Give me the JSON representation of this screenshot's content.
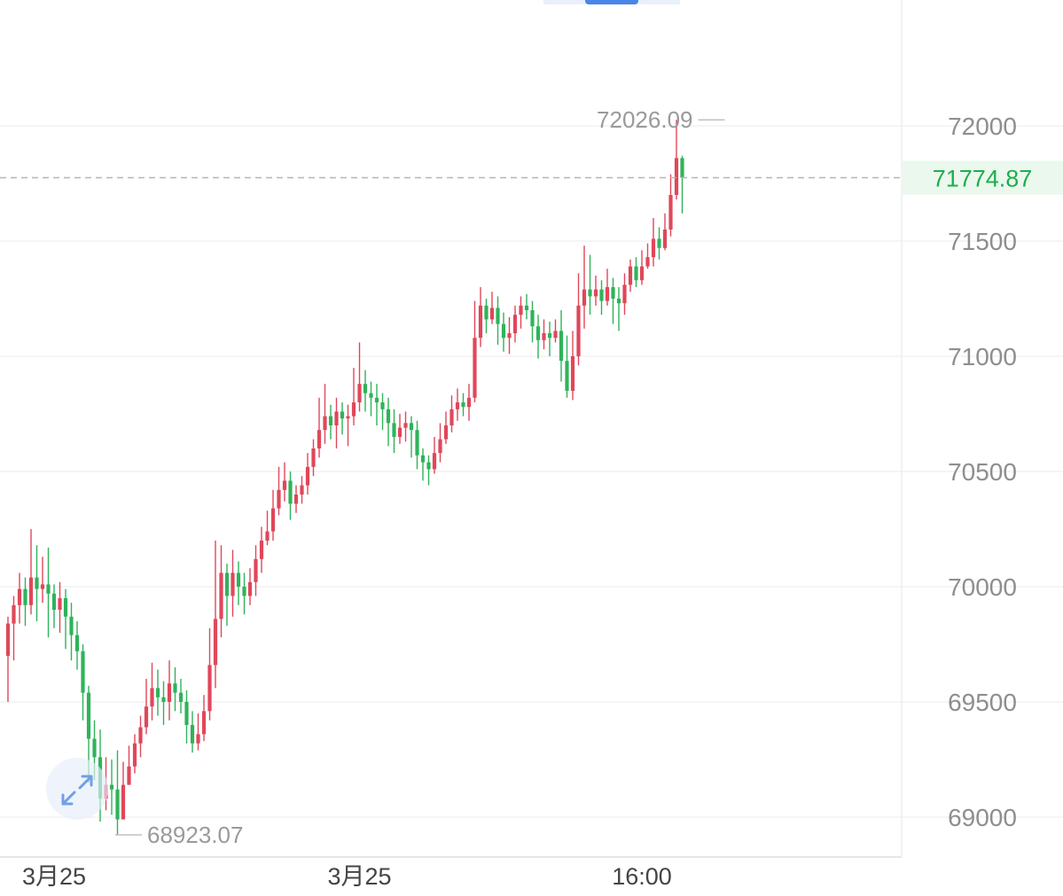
{
  "colors": {
    "up": "#e0475a",
    "down": "#2fb35a",
    "current_price": "#1fae4c",
    "axis_text": "#8e8e8e",
    "grid": "#efefef",
    "accent": "#4a86e6"
  },
  "controls": {
    "expand_icon": "expand-arrows-icon",
    "top_tab_indicator": "active-tab-indicator"
  },
  "chart_data": {
    "type": "candlestick",
    "title": "",
    "ylim": [
      68800,
      72200
    ],
    "y_ticks": [
      72000,
      71500,
      71000,
      70500,
      70000,
      69500,
      69000
    ],
    "x_tick_labels": [
      "3月25",
      "3月25",
      "16:00"
    ],
    "x_tick_index": [
      8,
      61,
      110
    ],
    "current_price": "71774.87",
    "high_annotation": {
      "label": "72026.09",
      "index": 125
    },
    "low_annotation": {
      "label": "68923.07",
      "index": 18
    },
    "grid": true,
    "candles": [
      [
        69700,
        69840,
        69500,
        69870
      ],
      [
        69840,
        69920,
        69680,
        69960
      ],
      [
        69920,
        69990,
        69840,
        70060
      ],
      [
        69990,
        69920,
        69830,
        70040
      ],
      [
        69920,
        70040,
        69880,
        70250
      ],
      [
        70040,
        69990,
        69850,
        70180
      ],
      [
        69990,
        70010,
        69930,
        70130
      ],
      [
        70010,
        69970,
        69780,
        70170
      ],
      [
        69970,
        69900,
        69820,
        70010
      ],
      [
        69900,
        69950,
        69800,
        70020
      ],
      [
        69950,
        69870,
        69730,
        69990
      ],
      [
        69870,
        69790,
        69680,
        69930
      ],
      [
        69790,
        69720,
        69640,
        69850
      ],
      [
        69720,
        69540,
        69420,
        69750
      ],
      [
        69540,
        69340,
        69150,
        69570
      ],
      [
        69340,
        69260,
        69160,
        69420
      ],
      [
        69260,
        69080,
        68980,
        69380
      ],
      [
        69080,
        69140,
        69030,
        69260
      ],
      [
        69140,
        69120,
        69010,
        69250
      ],
      [
        69120,
        68990,
        68923,
        69290
      ],
      [
        68990,
        69140,
        69010,
        69240
      ],
      [
        69140,
        69220,
        69140,
        69310
      ],
      [
        69220,
        69320,
        69190,
        69360
      ],
      [
        69320,
        69390,
        69260,
        69440
      ],
      [
        69390,
        69480,
        69360,
        69600
      ],
      [
        69480,
        69560,
        69420,
        69670
      ],
      [
        69560,
        69520,
        69440,
        69640
      ],
      [
        69520,
        69500,
        69400,
        69590
      ],
      [
        69500,
        69580,
        69420,
        69680
      ],
      [
        69580,
        69540,
        69460,
        69650
      ],
      [
        69540,
        69500,
        69450,
        69600
      ],
      [
        69500,
        69400,
        69320,
        69550
      ],
      [
        69400,
        69320,
        69280,
        69460
      ],
      [
        69320,
        69360,
        69290,
        69450
      ],
      [
        69360,
        69460,
        69330,
        69530
      ],
      [
        69460,
        69660,
        69420,
        69820
      ],
      [
        69660,
        69860,
        69560,
        70200
      ],
      [
        69860,
        70060,
        69780,
        70180
      ],
      [
        70060,
        69960,
        69830,
        70100
      ],
      [
        69960,
        70060,
        69870,
        70160
      ],
      [
        70060,
        70000,
        69920,
        70110
      ],
      [
        70000,
        69960,
        69880,
        70060
      ],
      [
        69960,
        70020,
        69920,
        70080
      ],
      [
        70020,
        70120,
        69960,
        70180
      ],
      [
        70120,
        70200,
        70060,
        70260
      ],
      [
        70200,
        70240,
        70180,
        70330
      ],
      [
        70240,
        70340,
        70200,
        70420
      ],
      [
        70340,
        70420,
        70310,
        70520
      ],
      [
        70420,
        70460,
        70370,
        70540
      ],
      [
        70460,
        70360,
        70290,
        70500
      ],
      [
        70360,
        70400,
        70320,
        70440
      ],
      [
        70400,
        70440,
        70360,
        70480
      ],
      [
        70440,
        70520,
        70400,
        70580
      ],
      [
        70520,
        70600,
        70480,
        70640
      ],
      [
        70600,
        70680,
        70560,
        70820
      ],
      [
        70680,
        70740,
        70620,
        70880
      ],
      [
        70740,
        70700,
        70640,
        70790
      ],
      [
        70700,
        70760,
        70600,
        70820
      ],
      [
        70760,
        70730,
        70660,
        70800
      ],
      [
        70730,
        70740,
        70610,
        70790
      ],
      [
        70740,
        70800,
        70700,
        70950
      ],
      [
        70800,
        70880,
        70760,
        71060
      ],
      [
        70880,
        70840,
        70760,
        70940
      ],
      [
        70840,
        70820,
        70740,
        70890
      ],
      [
        70820,
        70800,
        70700,
        70880
      ],
      [
        70800,
        70770,
        70680,
        70840
      ],
      [
        70770,
        70710,
        70610,
        70820
      ],
      [
        70710,
        70650,
        70580,
        70770
      ],
      [
        70650,
        70690,
        70620,
        70750
      ],
      [
        70690,
        70710,
        70630,
        70760
      ],
      [
        70710,
        70680,
        70560,
        70740
      ],
      [
        70680,
        70570,
        70510,
        70720
      ],
      [
        70570,
        70540,
        70460,
        70600
      ],
      [
        70540,
        70510,
        70440,
        70570
      ],
      [
        70510,
        70580,
        70490,
        70650
      ],
      [
        70580,
        70640,
        70540,
        70710
      ],
      [
        70640,
        70700,
        70620,
        70760
      ],
      [
        70700,
        70770,
        70670,
        70830
      ],
      [
        70770,
        70800,
        70720,
        70860
      ],
      [
        70800,
        70780,
        70740,
        70840
      ],
      [
        70780,
        70820,
        70720,
        70880
      ],
      [
        70820,
        71080,
        70800,
        71240
      ],
      [
        71080,
        71220,
        71040,
        71300
      ],
      [
        71220,
        71160,
        71100,
        71250
      ],
      [
        71160,
        71210,
        71140,
        71280
      ],
      [
        71210,
        71140,
        71050,
        71260
      ],
      [
        71140,
        71080,
        71020,
        71190
      ],
      [
        71080,
        71100,
        71010,
        71170
      ],
      [
        71100,
        71180,
        71060,
        71220
      ],
      [
        71180,
        71220,
        71120,
        71260
      ],
      [
        71220,
        71200,
        71160,
        71270
      ],
      [
        71200,
        71130,
        71060,
        71240
      ],
      [
        71130,
        71070,
        70990,
        71180
      ],
      [
        71070,
        71100,
        71030,
        71160
      ],
      [
        71100,
        71080,
        71000,
        71150
      ],
      [
        71080,
        71110,
        71060,
        71160
      ],
      [
        71110,
        70980,
        70890,
        71200
      ],
      [
        70980,
        70850,
        70820,
        71090
      ],
      [
        70850,
        71000,
        70810,
        71110
      ],
      [
        71000,
        71220,
        70960,
        71360
      ],
      [
        71220,
        71290,
        71120,
        71480
      ],
      [
        71290,
        71260,
        71180,
        71440
      ],
      [
        71260,
        71290,
        71220,
        71350
      ],
      [
        71290,
        71240,
        71180,
        71330
      ],
      [
        71240,
        71300,
        71220,
        71380
      ],
      [
        71300,
        71250,
        71140,
        71340
      ],
      [
        71250,
        71230,
        71110,
        71300
      ],
      [
        71230,
        71310,
        71180,
        71360
      ],
      [
        71310,
        71390,
        71280,
        71420
      ],
      [
        71390,
        71330,
        71300,
        71430
      ],
      [
        71330,
        71390,
        71310,
        71460
      ],
      [
        71390,
        71430,
        71380,
        71490
      ],
      [
        71430,
        71510,
        71390,
        71600
      ],
      [
        71510,
        71470,
        71420,
        71560
      ],
      [
        71470,
        71550,
        71460,
        71620
      ],
      [
        71550,
        71700,
        71520,
        71790
      ],
      [
        71700,
        71860,
        71680,
        72026
      ],
      [
        71860,
        71774.87,
        71620,
        71870
      ]
    ]
  }
}
